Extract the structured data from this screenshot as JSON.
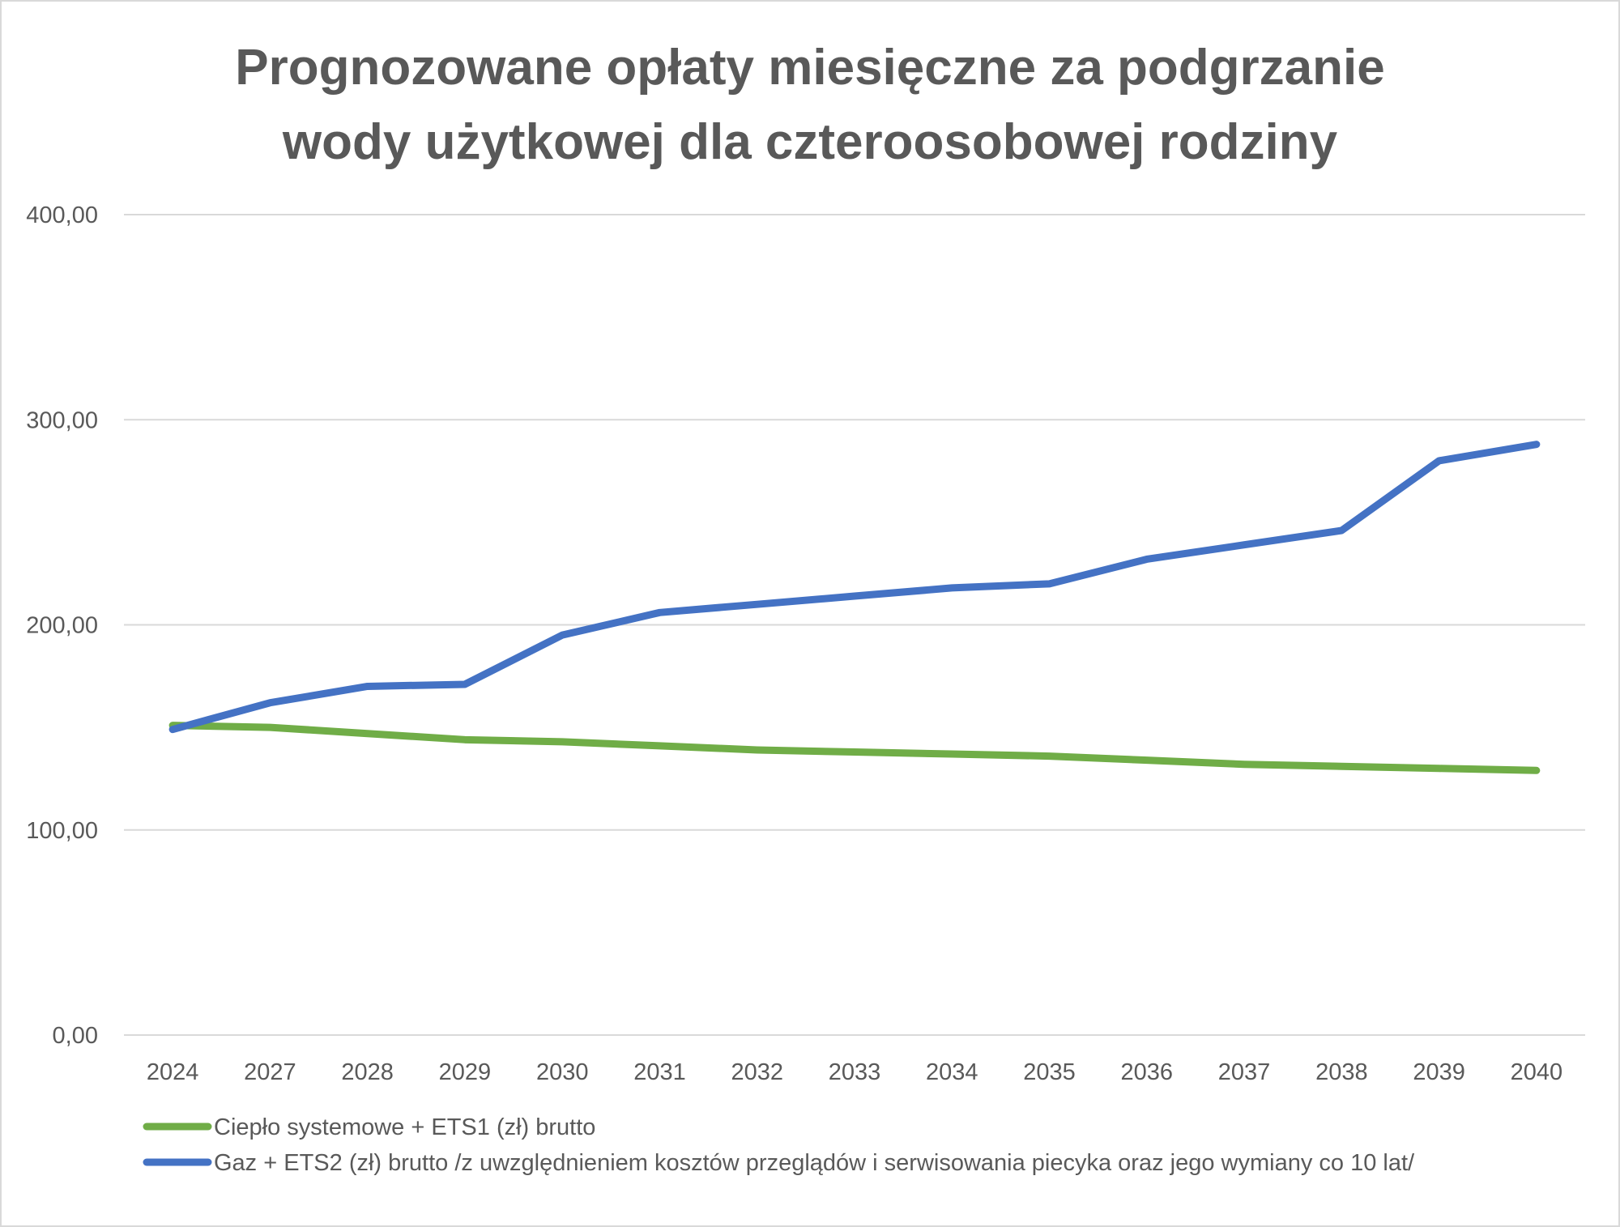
{
  "chart_data": {
    "type": "line",
    "title_lines": [
      "Prognozowane opłaty miesięczne za podgrzanie",
      "wody użytkowej dla czteroosobowej rodziny"
    ],
    "xlabel": "",
    "ylabel": "",
    "categories": [
      "2024",
      "2027",
      "2028",
      "2029",
      "2030",
      "2031",
      "2032",
      "2033",
      "2034",
      "2035",
      "2036",
      "2037",
      "2038",
      "2039",
      "2040"
    ],
    "ylim": [
      0,
      400
    ],
    "yticks": [
      0,
      100,
      200,
      300,
      400
    ],
    "ytick_labels": [
      "0,00",
      "100,00",
      "200,00",
      "300,00",
      "400,00"
    ],
    "grid": "horizontal",
    "legend_position": "bottom",
    "series": [
      {
        "name": "Ciepło systemowe + ETS1 (zł) brutto",
        "color": "#70ad47",
        "values": [
          151,
          150,
          147,
          144,
          143,
          141,
          139,
          138,
          137,
          136,
          134,
          132,
          131,
          130,
          129
        ]
      },
      {
        "name": "Gaz + ETS2 (zł) brutto /z uwzględnieniem kosztów przeglądów i serwisowania piecyka oraz jego wymiany co 10 lat/",
        "color": "#4472c4",
        "values": [
          149,
          162,
          170,
          171,
          195,
          206,
          210,
          214,
          218,
          220,
          232,
          239,
          246,
          280,
          288
        ]
      }
    ]
  }
}
